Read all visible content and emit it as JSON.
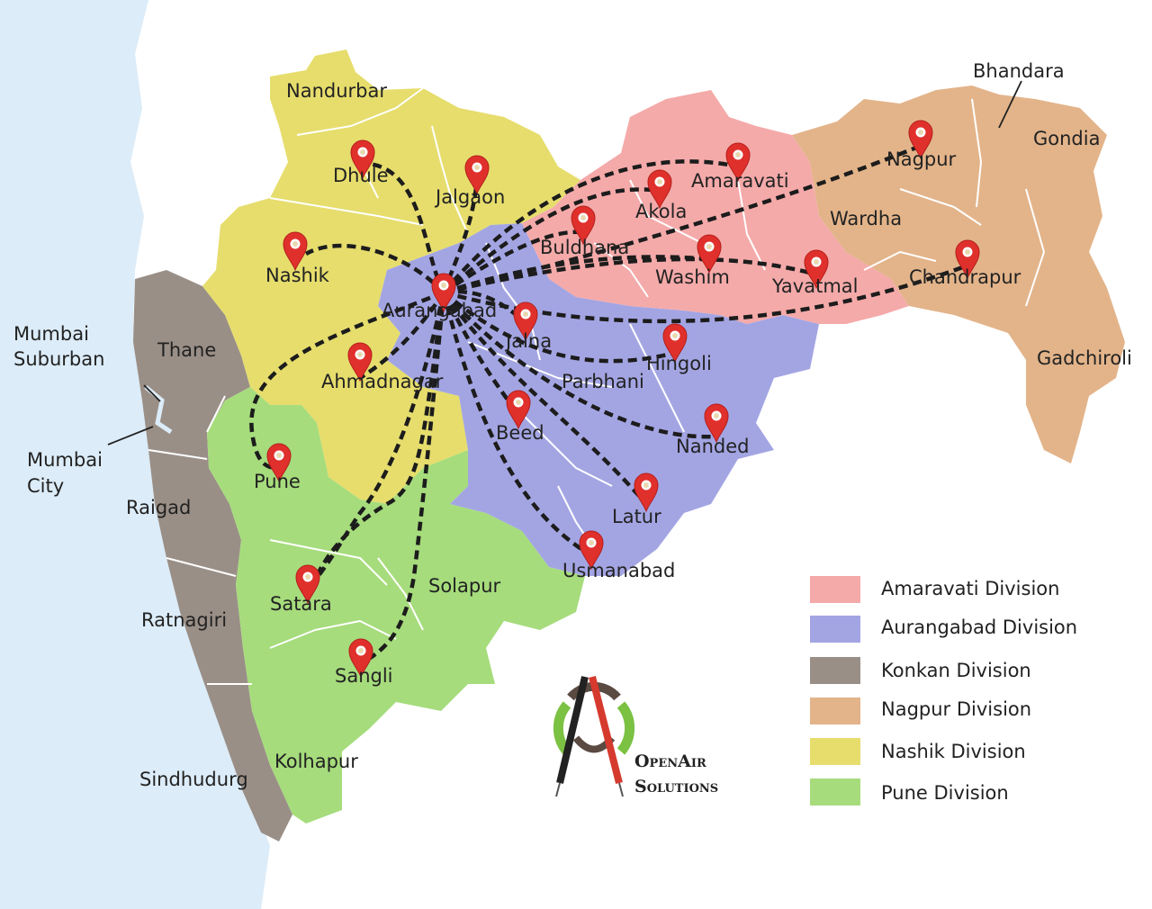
{
  "colors": {
    "sea": "#dcecf8",
    "amaravati": "#f4aaa9",
    "aurangabad": "#a3a5e3",
    "konkan": "#9a8f87",
    "nagpur": "#e3b48a",
    "nashik": "#e6dd6d",
    "pune": "#a6dc7c",
    "pin": "#e0302c"
  },
  "districts": [
    {
      "name": "Nandurbar"
    },
    {
      "name": "Dhule"
    },
    {
      "name": "Jalgaon"
    },
    {
      "name": "Nashik"
    },
    {
      "name": "Aurangabad"
    },
    {
      "name": "Jalna"
    },
    {
      "name": "Ahmadnagar"
    },
    {
      "name": "Thane"
    },
    {
      "name": "Mumbai"
    },
    {
      "name": "Suburban"
    },
    {
      "name": "Mumbai"
    },
    {
      "name": "City"
    },
    {
      "name": "Raigad"
    },
    {
      "name": "Pune"
    },
    {
      "name": "Satara"
    },
    {
      "name": "Sangli"
    },
    {
      "name": "Solapur"
    },
    {
      "name": "Ratnagiri"
    },
    {
      "name": "Kolhapur"
    },
    {
      "name": "Sindhudurg"
    },
    {
      "name": "Beed"
    },
    {
      "name": "Parbhani"
    },
    {
      "name": "Hingoli"
    },
    {
      "name": "Nanded"
    },
    {
      "name": "Latur"
    },
    {
      "name": "Usmanabad"
    },
    {
      "name": "Buldhana"
    },
    {
      "name": "Akola"
    },
    {
      "name": "Amaravati"
    },
    {
      "name": "Washim"
    },
    {
      "name": "Yavatmal"
    },
    {
      "name": "Wardha"
    },
    {
      "name": "Nagpur"
    },
    {
      "name": "Chandrapur"
    },
    {
      "name": "Gadchiroli"
    },
    {
      "name": "Gondia"
    },
    {
      "name": "Bhandara"
    }
  ],
  "legend": [
    {
      "label": "Amaravati Division",
      "color": "#f4aaa9"
    },
    {
      "label": "Aurangabad Division",
      "color": "#a3a5e3"
    },
    {
      "label": "Konkan Division",
      "color": "#9a8f87"
    },
    {
      "label": "Nagpur Division",
      "color": "#e3b48a"
    },
    {
      "label": "Nashik Division",
      "color": "#e6dd6d"
    },
    {
      "label": "Pune Division",
      "color": "#a6dc7c"
    }
  ],
  "logo": {
    "icon": "compass-logo-icon",
    "line1": "OpenAir",
    "line2": "Solutions"
  }
}
